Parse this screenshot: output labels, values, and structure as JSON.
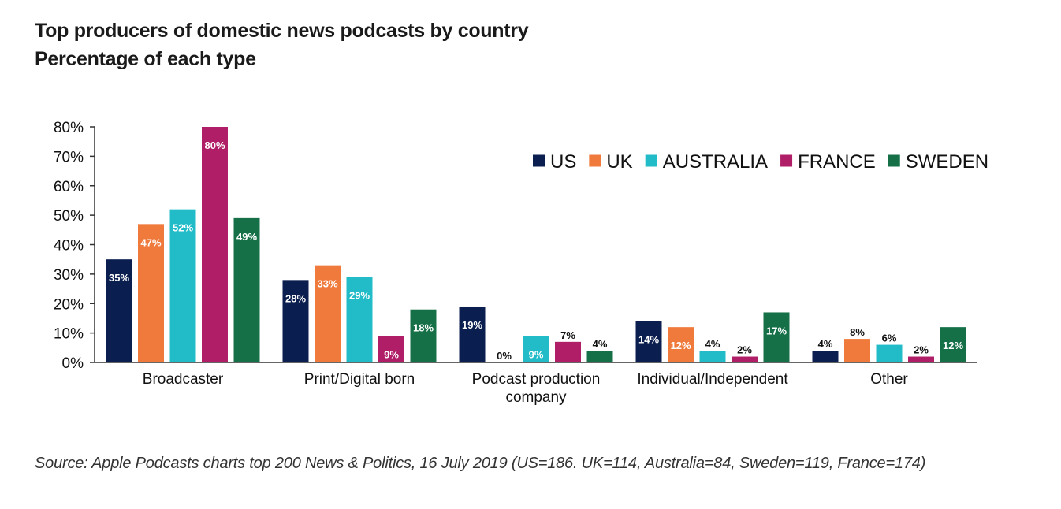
{
  "chart_data": {
    "type": "bar",
    "title": "Top producers of domestic news podcasts by country",
    "subtitle": "Percentage of each type",
    "categories": [
      [
        "Broadcaster"
      ],
      [
        "Print/Digital born"
      ],
      [
        "Podcast production",
        "company"
      ],
      [
        "Individual/Independent"
      ],
      [
        "Other"
      ]
    ],
    "series": [
      {
        "name": "US",
        "color": "#0a1e4f",
        "values": [
          35,
          28,
          19,
          14,
          4
        ]
      },
      {
        "name": "UK",
        "color": "#f07a3c",
        "values": [
          47,
          33,
          0,
          12,
          8
        ]
      },
      {
        "name": "AUSTRALIA",
        "color": "#21bcc8",
        "values": [
          52,
          29,
          9,
          4,
          6
        ]
      },
      {
        "name": "FRANCE",
        "color": "#b01e68",
        "values": [
          80,
          9,
          7,
          2,
          2
        ]
      },
      {
        "name": "SWEDEN",
        "color": "#157048",
        "values": [
          49,
          18,
          4,
          17,
          12
        ]
      }
    ],
    "ylim": [
      0,
      80
    ],
    "yticks": [
      "0%",
      "10%",
      "20%",
      "30%",
      "40%",
      "50%",
      "60%",
      "70%",
      "80%"
    ],
    "value_suffix": "%",
    "legend_position": "top-right",
    "xlabel": "",
    "ylabel": ""
  },
  "source": "Source: Apple Podcasts charts top 200 News & Politics, 16 July 2019 (US=186. UK=114, Australia=84, Sweden=119, France=174)"
}
